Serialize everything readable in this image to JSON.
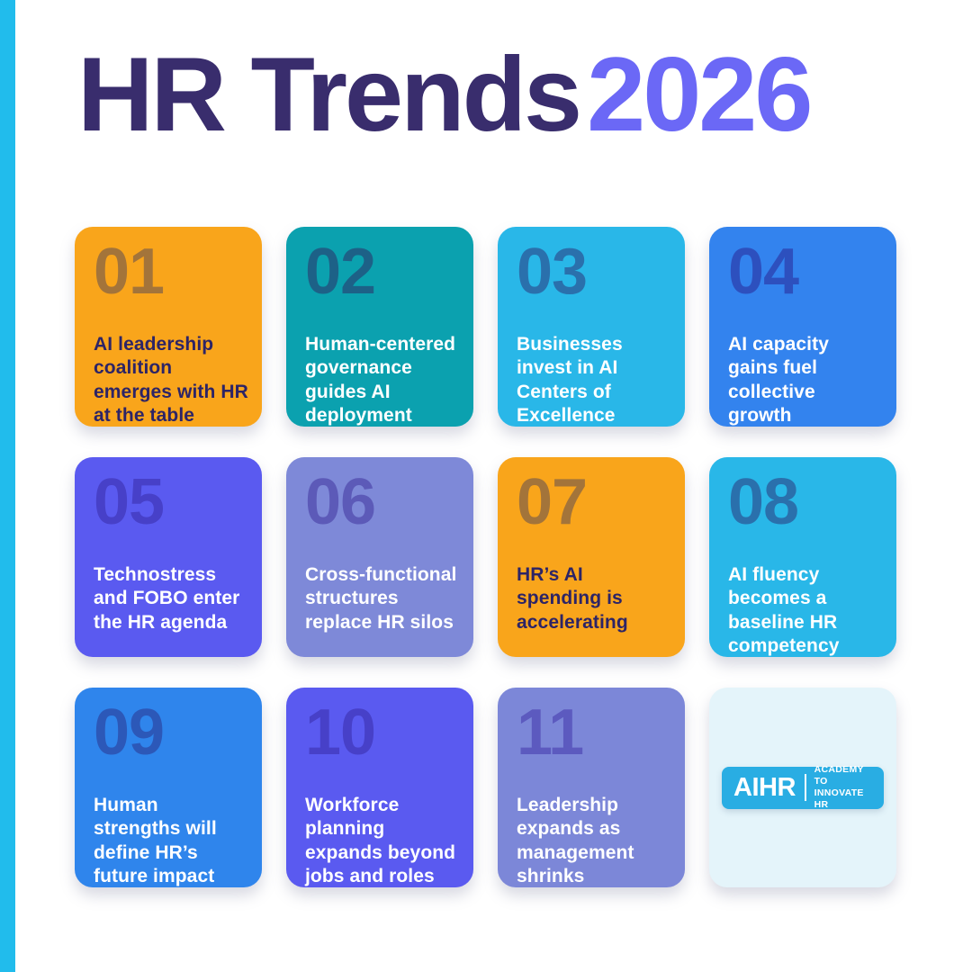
{
  "page": {
    "title_main": "HR Trends",
    "title_year": "2026"
  },
  "colors": {
    "background": "#ffffff",
    "accent_bar": "#21BCEC",
    "title_main": "#392D6D",
    "title_year": "#6B68F6",
    "logo_badge": "#29ADE3",
    "logo_card_bg": "#E4F4FA"
  },
  "brand": {
    "logo_text": "AIHR",
    "tagline_line1": "ACADEMY TO",
    "tagline_line2": "INNOVATE HR"
  },
  "cards": [
    {
      "number": "01",
      "text": "AI leadership coalition emerges with HR at the table",
      "bg": "#F9A51B",
      "number_color": "#A3743A",
      "text_color": "#2D2466"
    },
    {
      "number": "02",
      "text": "Human-centered governance guides AI deployment",
      "bg": "#0BA1AF",
      "number_color": "#1D6187",
      "text_color": "#FFFFFF"
    },
    {
      "number": "03",
      "text": "Businesses invest in AI Centers of Excellence",
      "bg": "#29B7E8",
      "number_color": "#2A70AC",
      "text_color": "#FFFFFF"
    },
    {
      "number": "04",
      "text": "AI capacity gains fuel collective growth",
      "bg": "#3383EE",
      "number_color": "#2D50BE",
      "text_color": "#FFFFFF"
    },
    {
      "number": "05",
      "text": "Technostress and FOBO enter the HR agenda",
      "bg": "#5A5AF0",
      "number_color": "#4740C8",
      "text_color": "#FFFFFF"
    },
    {
      "number": "06",
      "text": "Cross-functional structures replace HR silos",
      "bg": "#7E89D8",
      "number_color": "#5C5AB8",
      "text_color": "#FFFFFF"
    },
    {
      "number": "07",
      "text": "HR’s AI spending is accelerating",
      "bg": "#F9A51B",
      "number_color": "#A3743A",
      "text_color": "#2D2466"
    },
    {
      "number": "08",
      "text": "AI fluency becomes a baseline HR competency",
      "bg": "#29B7E8",
      "number_color": "#2A70AC",
      "text_color": "#FFFFFF"
    },
    {
      "number": "09",
      "text": "Human strengths will define HR’s future impact",
      "bg": "#2F85EC",
      "number_color": "#2C58B8",
      "text_color": "#FFFFFF"
    },
    {
      "number": "10",
      "text": "Workforce planning expands beyond jobs and roles",
      "bg": "#5A5AF0",
      "number_color": "#4740C8",
      "text_color": "#FFFFFF"
    },
    {
      "number": "11",
      "text": "Leadership expands as management shrinks",
      "bg": "#7C87D8",
      "number_color": "#5C5ABF",
      "text_color": "#FFFFFF"
    },
    {
      "type": "logo",
      "bg": "#E4F4FA"
    }
  ]
}
